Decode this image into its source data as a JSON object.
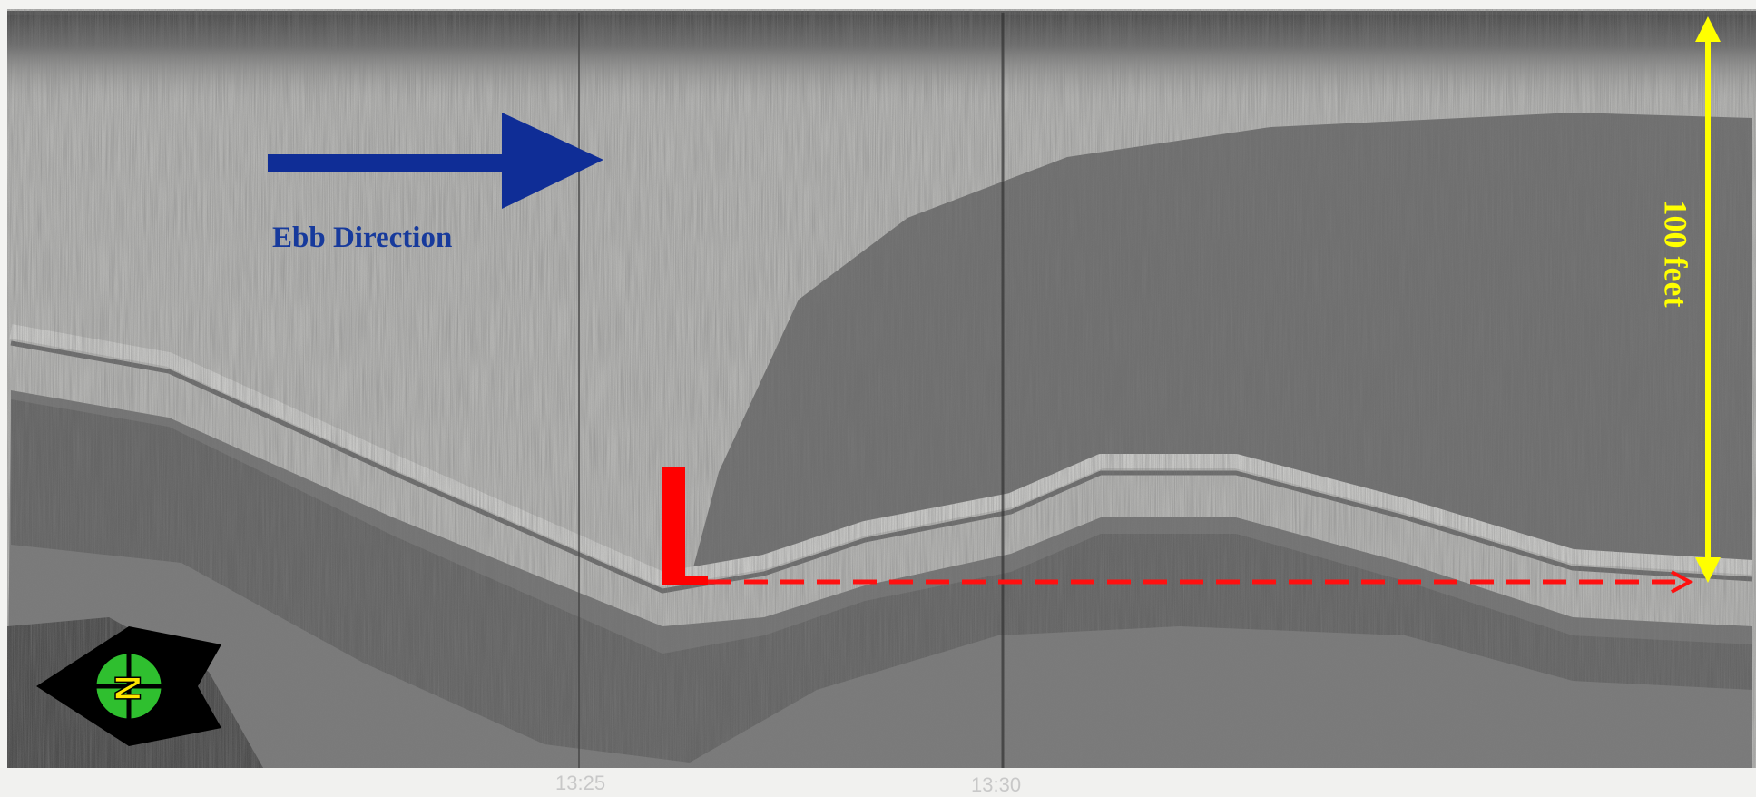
{
  "annotations": {
    "ebb_label": "Ebb Direction",
    "depth_label": "100 feet",
    "compass_label": "N"
  },
  "time_marks": [
    "13:25",
    "13:30"
  ]
}
